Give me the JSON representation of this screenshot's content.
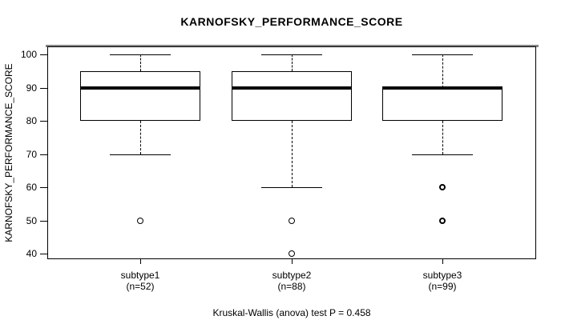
{
  "chart_data": {
    "type": "boxplot",
    "title": "KARNOFSKY_PERFORMANCE_SCORE",
    "ylabel": "KARNOFSKY_PERFORMANCE_SCORE",
    "xlabel": "",
    "caption": "Kruskal-Wallis (anova) test P = 0.458",
    "ylim": [
      40,
      100
    ],
    "yticks": [
      100,
      90,
      80,
      70,
      60,
      50,
      40
    ],
    "grid": false,
    "legend": "none",
    "categories": [
      "subtype1",
      "subtype2",
      "subtype3"
    ],
    "group_sizes": [
      "(n=52)",
      "(n=88)",
      "(n=99)"
    ],
    "series": [
      {
        "name": "subtype1",
        "n": 52,
        "whisker_low": 70,
        "q1": 80,
        "median": 90,
        "q3": 95,
        "whisker_high": 100,
        "outliers": [
          50
        ],
        "outlier_bold": false
      },
      {
        "name": "subtype2",
        "n": 88,
        "whisker_low": 60,
        "q1": 80,
        "median": 90,
        "q3": 95,
        "whisker_high": 100,
        "outliers": [
          50,
          40
        ],
        "outlier_bold": false
      },
      {
        "name": "subtype3",
        "n": 99,
        "whisker_low": 70,
        "q1": 80,
        "median": 90,
        "q3": 90,
        "whisker_high": 100,
        "outliers": [
          60,
          50
        ],
        "outlier_bold": true
      }
    ],
    "colors": {
      "line": "#000000",
      "box_fill": "#ffffff",
      "background": "#ffffff",
      "top_border_shadow": "#848484"
    }
  }
}
